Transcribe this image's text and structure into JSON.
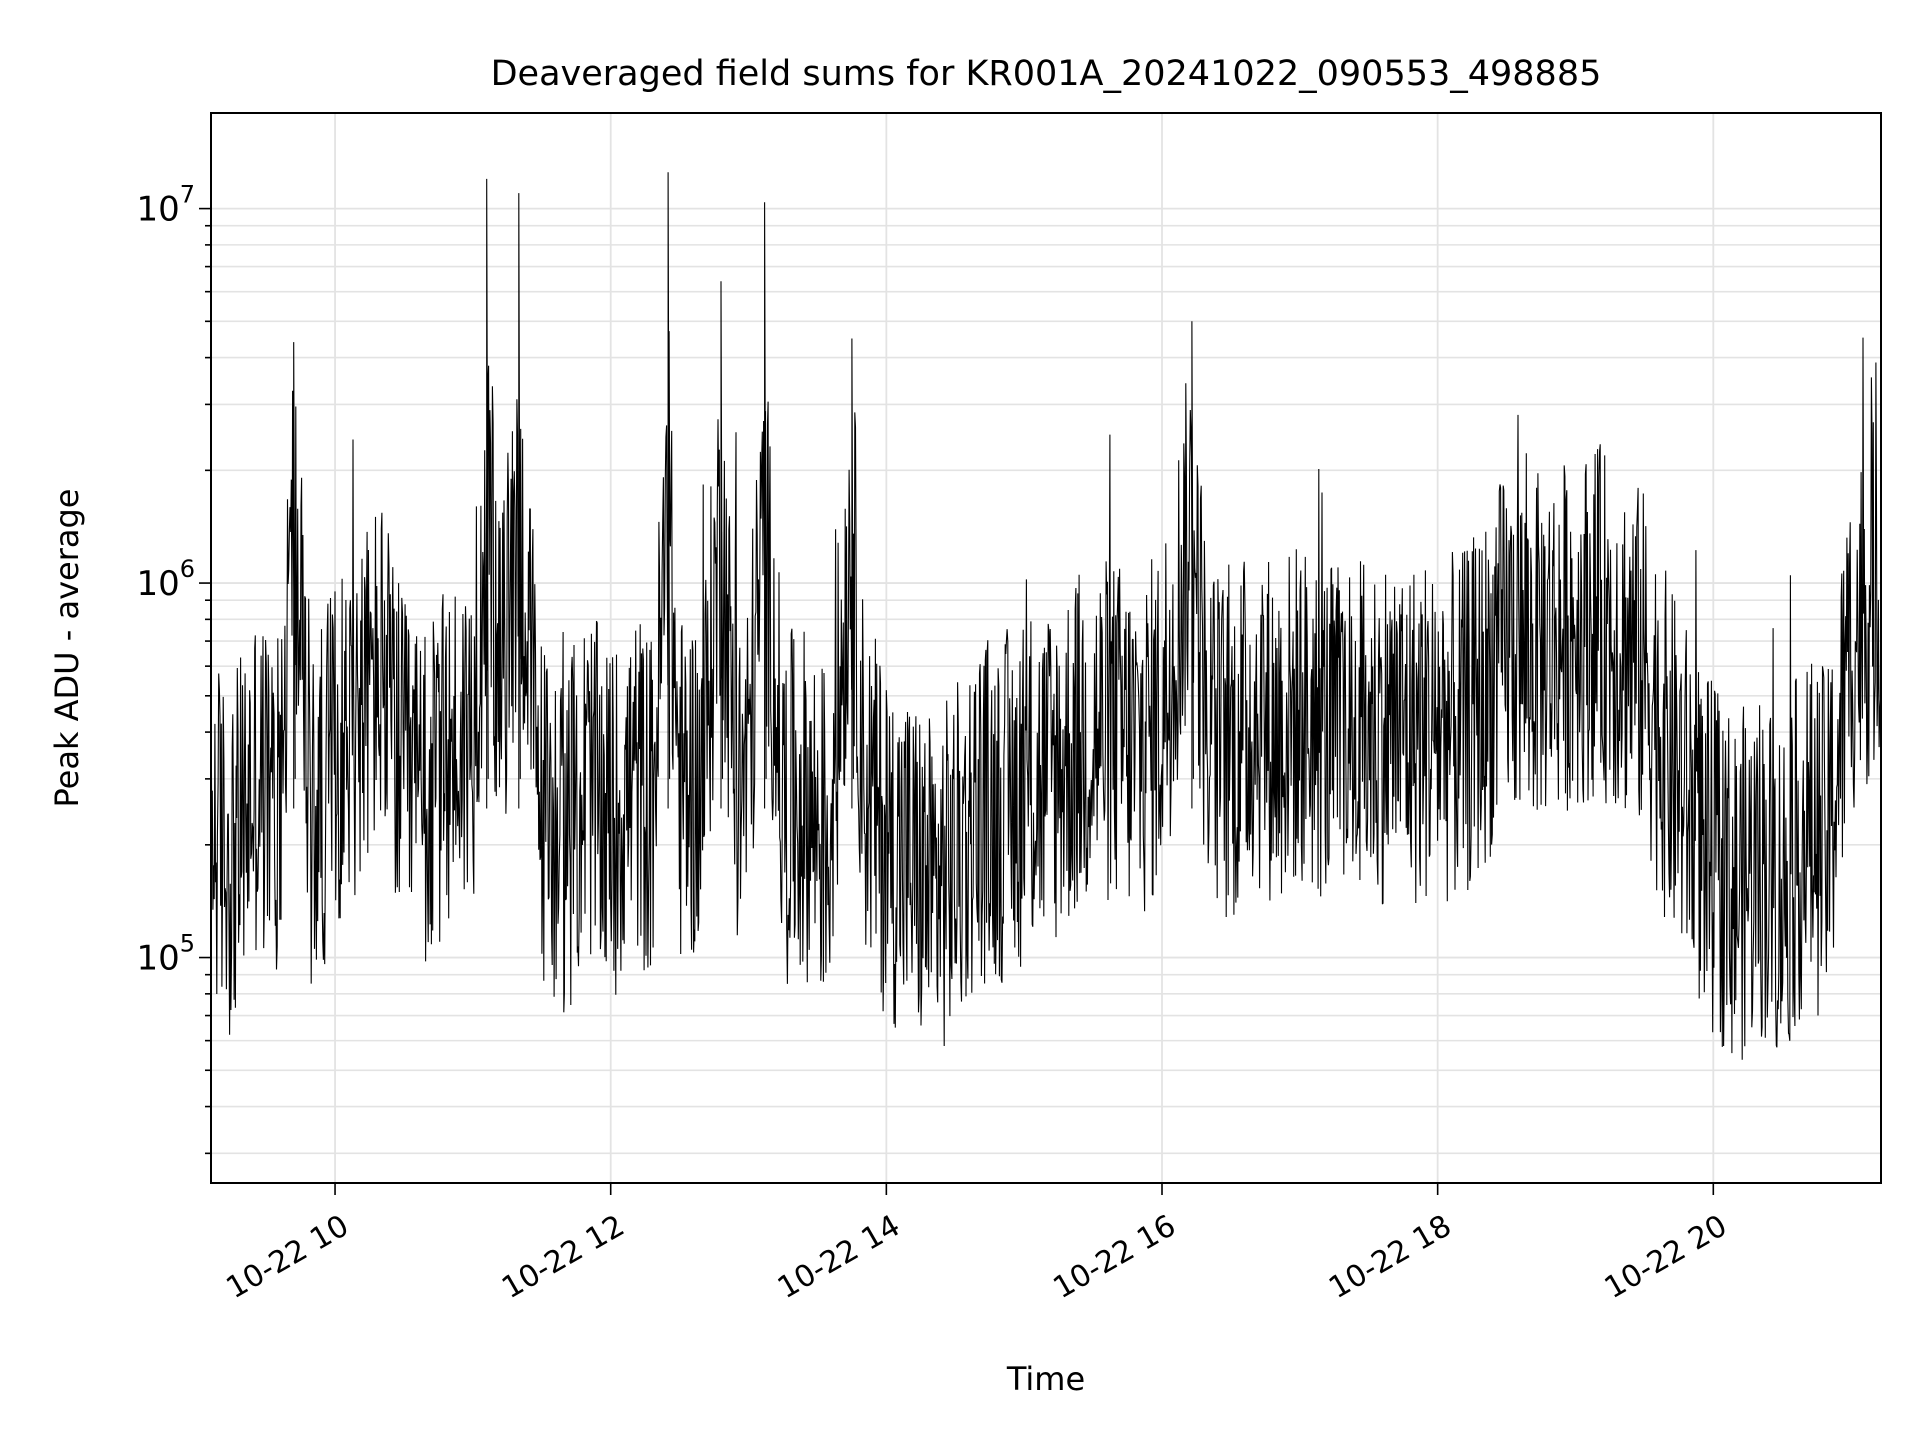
{
  "chart_data": {
    "type": "line",
    "title": "Deaveraged field sums for KR001A_20241022_090553_498885",
    "xlabel": "Time",
    "ylabel": "Peak ADU - average",
    "y_scale": "log",
    "ylim": [
      25000,
      18000000
    ],
    "xlim": [
      "2024-10-22 09:06",
      "2024-10-22 21:13"
    ],
    "x_ticks": [
      "10-22 10",
      "10-22 12",
      "10-22 14",
      "10-22 16",
      "10-22 18",
      "10-22 20"
    ],
    "y_ticks": [
      {
        "base": "10",
        "exp": "5"
      },
      {
        "base": "10",
        "exp": "6"
      },
      {
        "base": "10",
        "exp": "7"
      }
    ],
    "grid": true,
    "series": [
      {
        "color": "#000000",
        "x": [
          "2024-10-22 09:06",
          "2024-10-22 09:15",
          "2024-10-22 09:25",
          "2024-10-22 09:35",
          "2024-10-22 09:42",
          "2024-10-22 09:50",
          "2024-10-22 10:00",
          "2024-10-22 10:10",
          "2024-10-22 10:20",
          "2024-10-22 10:30",
          "2024-10-22 10:40",
          "2024-10-22 10:50",
          "2024-10-22 11:00",
          "2024-10-22 11:06",
          "2024-10-22 11:12",
          "2024-10-22 11:20",
          "2024-10-22 11:30",
          "2024-10-22 11:40",
          "2024-10-22 11:50",
          "2024-10-22 12:00",
          "2024-10-22 12:10",
          "2024-10-22 12:18",
          "2024-10-22 12:25",
          "2024-10-22 12:30",
          "2024-10-22 12:40",
          "2024-10-22 12:48",
          "2024-10-22 12:55",
          "2024-10-22 13:00",
          "2024-10-22 13:07",
          "2024-10-22 13:15",
          "2024-10-22 13:25",
          "2024-10-22 13:35",
          "2024-10-22 13:45",
          "2024-10-22 13:50",
          "2024-10-22 14:00",
          "2024-10-22 14:10",
          "2024-10-22 14:20",
          "2024-10-22 14:30",
          "2024-10-22 14:40",
          "2024-10-22 14:50",
          "2024-10-22 15:00",
          "2024-10-22 15:10",
          "2024-10-22 15:20",
          "2024-10-22 15:30",
          "2024-10-22 15:40",
          "2024-10-22 15:50",
          "2024-10-22 16:00",
          "2024-10-22 16:13",
          "2024-10-22 16:20",
          "2024-10-22 16:30",
          "2024-10-22 16:40",
          "2024-10-22 16:50",
          "2024-10-22 17:00",
          "2024-10-22 17:10",
          "2024-10-22 17:20",
          "2024-10-22 17:30",
          "2024-10-22 17:40",
          "2024-10-22 17:50",
          "2024-10-22 18:00",
          "2024-10-22 18:10",
          "2024-10-22 18:20",
          "2024-10-22 18:30",
          "2024-10-22 18:40",
          "2024-10-22 18:50",
          "2024-10-22 19:00",
          "2024-10-22 19:10",
          "2024-10-22 19:20",
          "2024-10-22 19:30",
          "2024-10-22 19:40",
          "2024-10-22 19:50",
          "2024-10-22 20:00",
          "2024-10-22 20:10",
          "2024-10-22 20:20",
          "2024-10-22 20:30",
          "2024-10-22 20:40",
          "2024-10-22 20:50",
          "2024-10-22 21:00",
          "2024-10-22 21:13"
        ],
        "values": [
          230000,
          180000,
          300000,
          250000,
          4400000,
          220000,
          350000,
          450000,
          600000,
          300000,
          250000,
          350000,
          400000,
          12000000,
          500000,
          11000000,
          250000,
          200000,
          300000,
          220000,
          300000,
          250000,
          12500000,
          280000,
          300000,
          6400000,
          260000,
          350000,
          10400000,
          250000,
          260000,
          200000,
          4500000,
          300000,
          200000,
          180000,
          150000,
          180000,
          250000,
          250000,
          280000,
          300000,
          350000,
          400000,
          400000,
          350000,
          450000,
          5000000,
          400000,
          350000,
          450000,
          400000,
          450000,
          400000,
          380000,
          400000,
          420000,
          400000,
          420000,
          400000,
          500000,
          700000,
          650000,
          700000,
          750000,
          800000,
          700000,
          600000,
          350000,
          250000,
          180000,
          150000,
          180000,
          150000,
          220000,
          200000,
          700000,
          1000000
        ]
      }
    ]
  }
}
